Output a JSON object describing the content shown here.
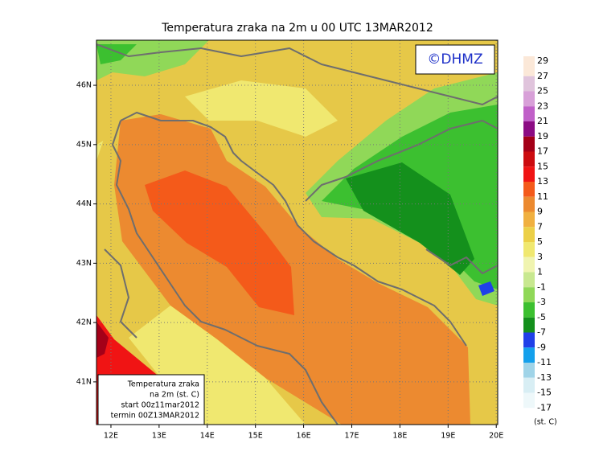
{
  "map": {
    "title": "Temperatura zraka na 2m u 00 UTC 13MAR2012",
    "copyright": "©DHMZ",
    "xlim": [
      11.7,
      20.03
    ],
    "ylim": [
      40.28,
      46.76
    ],
    "xticks": [
      {
        "value": 12,
        "label": "12E"
      },
      {
        "value": 13,
        "label": "13E"
      },
      {
        "value": 14,
        "label": "14E"
      },
      {
        "value": 15,
        "label": "15E"
      },
      {
        "value": 16,
        "label": "16E"
      },
      {
        "value": 17,
        "label": "17E"
      },
      {
        "value": 18,
        "label": "18E"
      },
      {
        "value": 19,
        "label": "19E"
      },
      {
        "value": 20,
        "label": "20E"
      }
    ],
    "yticks": [
      {
        "value": 41,
        "label": "41N"
      },
      {
        "value": 42,
        "label": "42N"
      },
      {
        "value": 43,
        "label": "43N"
      },
      {
        "value": 44,
        "label": "44N"
      },
      {
        "value": 45,
        "label": "45N"
      },
      {
        "value": 46,
        "label": "46N"
      }
    ],
    "grid": true,
    "info": [
      "Temperatura zraka",
      "na 2m (st. C)",
      "start 00z11mar2012",
      "termin 00Z13MAR2012"
    ],
    "legend": {
      "levels": [
        29,
        27,
        25,
        23,
        21,
        19,
        17,
        15,
        13,
        11,
        9,
        7,
        5,
        3,
        1,
        -1,
        -3,
        -5,
        -7,
        -9,
        -11,
        -13,
        -15,
        -17
      ],
      "colors": [
        "#fbe8d8",
        "#e0c4dc",
        "#d8a0d8",
        "#c060c8",
        "#8c0c84",
        "#a40018",
        "#cc0c10",
        "#f01414",
        "#f45a1a",
        "#ec8a30",
        "#f0b040",
        "#ecd048",
        "#f0e870",
        "#f0f4b0",
        "#c8e890",
        "#90d858",
        "#3cc030",
        "#14901c",
        "#2040e8",
        "#14a0ec",
        "#a0d4e8",
        "#d8eef4",
        "#eef8fa"
      ],
      "unit": "(st. C)"
    }
  }
}
